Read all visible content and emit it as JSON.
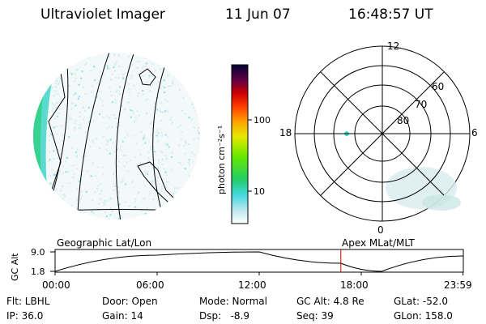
{
  "header": {
    "title": "Ultraviolet Imager",
    "date": "11 Jun 07",
    "time": "16:48:57 UT"
  },
  "geo_panel": {
    "caption": "Geographic Lat/Lon"
  },
  "apex_panel": {
    "caption": "Apex MLat/MLT"
  },
  "colorbar": {
    "label": "photon cm⁻²s⁻¹",
    "ticks": [
      "100",
      "10"
    ]
  },
  "polar": {
    "mlt_labels": {
      "top": "12",
      "left": "18",
      "right": "6",
      "bottom": "0"
    },
    "lat_labels": [
      "60",
      "70",
      "80"
    ]
  },
  "altitude_plot": {
    "ylabel": "GC Alt",
    "yticks": [
      "9.0",
      "1.8"
    ],
    "xticks": [
      "00:00",
      "06:00",
      "12:00",
      "18:00",
      "23:59"
    ]
  },
  "chart_data": {
    "type": "line",
    "ylabel": "GC Alt",
    "ylim": [
      1.8,
      9.0
    ],
    "x": [
      "00:00",
      "06:00",
      "12:00",
      "18:00",
      "23:59"
    ],
    "series": [
      {
        "values": [
          1.8,
          7.8,
          9.0,
          2.4,
          7.5
        ]
      }
    ],
    "marker_time_hours": 16.8
  },
  "status": {
    "flt": "Flt: LBHL",
    "ip": "IP: 36.0",
    "door": "Door: Open",
    "gain": "Gain: 14",
    "mode": "Mode: Normal",
    "dsp": "Dsp:   -8.9",
    "gc_alt": "GC Alt: 4.8 Re",
    "seq": "Seq: 39",
    "glat": "GLat: -52.0",
    "glon": "GLon: 158.0"
  }
}
